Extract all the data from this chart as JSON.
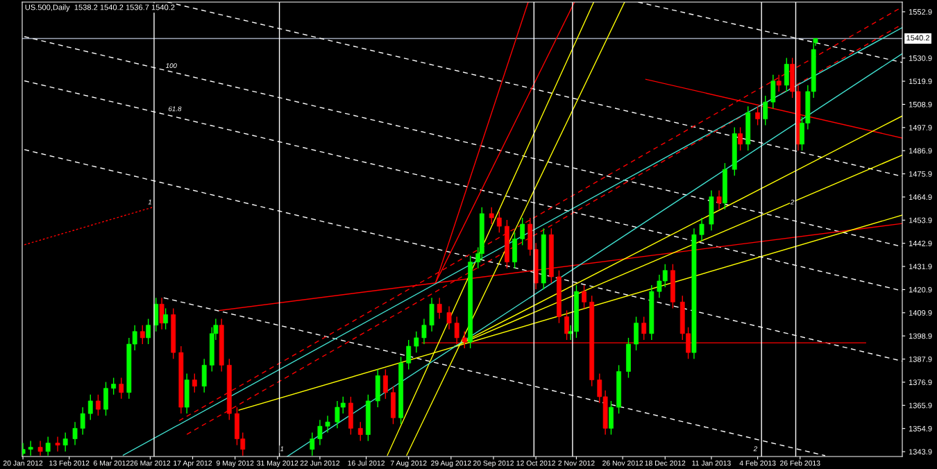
{
  "chart_data": {
    "type": "candlestick",
    "title": "US.500,Daily  1538.2 1540.2 1536.7 1540.2",
    "x": [
      "2012-01-20",
      "2012-01-24",
      "2012-01-29",
      "2012-02-02",
      "2012-02-07",
      "2012-02-11",
      "2012-02-16",
      "2012-02-20",
      "2012-02-24",
      "2012-02-28",
      "2012-03-03",
      "2012-03-07",
      "2012-03-11",
      "2012-03-15",
      "2012-03-18",
      "2012-03-22",
      "2012-03-25",
      "2012-03-29",
      "2012-04-01",
      "2012-04-03",
      "2012-04-07",
      "2012-04-11",
      "2012-04-14",
      "2012-04-18",
      "2012-04-23",
      "2012-04-27",
      "2012-04-29",
      "2012-05-02",
      "2012-05-06",
      "2012-05-10",
      "2012-05-13",
      "2012-06-18",
      "2012-06-22",
      "2012-06-26",
      "2012-07-01",
      "2012-07-04",
      "2012-07-08",
      "2012-07-13",
      "2012-07-17",
      "2012-07-22",
      "2012-07-26",
      "2012-07-30",
      "2012-08-03",
      "2012-08-07",
      "2012-08-11",
      "2012-08-15",
      "2012-08-19",
      "2012-08-23",
      "2012-08-28",
      "2012-09-01",
      "2012-09-05",
      "2012-09-08",
      "2012-09-12",
      "2012-09-14",
      "2012-09-19",
      "2012-09-23",
      "2012-09-27",
      "2012-10-01",
      "2012-10-05",
      "2012-10-09",
      "2012-10-12",
      "2012-10-16",
      "2012-10-20",
      "2012-10-24",
      "2012-10-28",
      "2012-10-30",
      "2012-11-02",
      "2012-11-06",
      "2012-11-10",
      "2012-11-14",
      "2012-11-17",
      "2012-11-20",
      "2012-11-24",
      "2012-11-29",
      "2012-12-03",
      "2012-12-07",
      "2012-12-11",
      "2012-12-15",
      "2012-12-18",
      "2012-12-22",
      "2012-12-27",
      "2012-12-30",
      "2013-01-02",
      "2013-01-06",
      "2013-01-11",
      "2013-01-15",
      "2013-01-18",
      "2013-01-23",
      "2013-01-26",
      "2013-01-30",
      "2013-02-04",
      "2013-02-08",
      "2013-02-12",
      "2013-02-15",
      "2013-02-19",
      "2013-02-22",
      "2013-02-25",
      "2013-02-27",
      "2013-03-02",
      "2013-03-05",
      "2013-03-06"
    ],
    "ohlc": [
      [
        1343,
        1348,
        1342,
        1345
      ],
      [
        1345,
        1349,
        1342,
        1346
      ],
      [
        1346,
        1349,
        1342,
        1344
      ],
      [
        1344,
        1351,
        1342,
        1348
      ],
      [
        1348,
        1351,
        1344,
        1347
      ],
      [
        1347,
        1353,
        1344,
        1350
      ],
      [
        1350,
        1358,
        1347,
        1355
      ],
      [
        1355,
        1365,
        1352,
        1362
      ],
      [
        1362,
        1371,
        1359,
        1368
      ],
      [
        1368,
        1371,
        1361,
        1364
      ],
      [
        1364,
        1377,
        1361,
        1374
      ],
      [
        1374,
        1379,
        1371,
        1376
      ],
      [
        1376,
        1379,
        1369,
        1372
      ],
      [
        1372,
        1398,
        1369,
        1395
      ],
      [
        1395,
        1404,
        1392,
        1401
      ],
      [
        1401,
        1404,
        1395,
        1398
      ],
      [
        1398,
        1407,
        1395,
        1404
      ],
      [
        1404,
        1417,
        1401,
        1414
      ],
      [
        1414,
        1417,
        1402,
        1405
      ],
      [
        1405,
        1412,
        1402,
        1409
      ],
      [
        1409,
        1412,
        1388,
        1391
      ],
      [
        1391,
        1394,
        1362,
        1365
      ],
      [
        1365,
        1381,
        1362,
        1378
      ],
      [
        1378,
        1381,
        1372,
        1375
      ],
      [
        1375,
        1388,
        1372,
        1385
      ],
      [
        1385,
        1403,
        1382,
        1400
      ],
      [
        1400,
        1407,
        1397,
        1404
      ],
      [
        1404,
        1407,
        1382,
        1385
      ],
      [
        1385,
        1388,
        1359,
        1362
      ],
      [
        1362,
        1365,
        1347,
        1350
      ],
      [
        1350,
        1353,
        1342,
        1345
      ],
      [
        1345,
        1353,
        1342,
        1350
      ],
      [
        1350,
        1359,
        1347,
        1356
      ],
      [
        1356,
        1361,
        1353,
        1358
      ],
      [
        1358,
        1368,
        1355,
        1365
      ],
      [
        1365,
        1370,
        1362,
        1367
      ],
      [
        1367,
        1370,
        1352,
        1355
      ],
      [
        1355,
        1358,
        1349,
        1352
      ],
      [
        1352,
        1371,
        1349,
        1368
      ],
      [
        1368,
        1383,
        1365,
        1380
      ],
      [
        1380,
        1383,
        1369,
        1372
      ],
      [
        1372,
        1375,
        1357,
        1360
      ],
      [
        1360,
        1389,
        1357,
        1386
      ],
      [
        1386,
        1397,
        1383,
        1394
      ],
      [
        1394,
        1401,
        1391,
        1398
      ],
      [
        1398,
        1407,
        1395,
        1404
      ],
      [
        1404,
        1417,
        1401,
        1414
      ],
      [
        1414,
        1417,
        1407,
        1410
      ],
      [
        1410,
        1413,
        1402,
        1405
      ],
      [
        1405,
        1408,
        1395,
        1398
      ],
      [
        1398,
        1401,
        1393,
        1396
      ],
      [
        1396,
        1437,
        1393,
        1434
      ],
      [
        1434,
        1441,
        1431,
        1438
      ],
      [
        1438,
        1460,
        1435,
        1457
      ],
      [
        1457,
        1460,
        1452,
        1455
      ],
      [
        1455,
        1458,
        1448,
        1451
      ],
      [
        1451,
        1454,
        1431,
        1434
      ],
      [
        1434,
        1448,
        1431,
        1445
      ],
      [
        1445,
        1455,
        1442,
        1452
      ],
      [
        1452,
        1455,
        1437,
        1440
      ],
      [
        1440,
        1443,
        1421,
        1424
      ],
      [
        1424,
        1450,
        1421,
        1447
      ],
      [
        1447,
        1450,
        1424,
        1427
      ],
      [
        1427,
        1430,
        1405,
        1408
      ],
      [
        1408,
        1411,
        1397,
        1400
      ],
      [
        1400,
        1404,
        1397,
        1401
      ],
      [
        1401,
        1423,
        1398,
        1420
      ],
      [
        1420,
        1423,
        1412,
        1415
      ],
      [
        1415,
        1418,
        1375,
        1378
      ],
      [
        1378,
        1381,
        1367,
        1370
      ],
      [
        1370,
        1373,
        1352,
        1355
      ],
      [
        1355,
        1368,
        1352,
        1365
      ],
      [
        1365,
        1385,
        1362,
        1382
      ],
      [
        1382,
        1398,
        1379,
        1395
      ],
      [
        1395,
        1408,
        1392,
        1405
      ],
      [
        1405,
        1408,
        1397,
        1400
      ],
      [
        1400,
        1423,
        1397,
        1420
      ],
      [
        1420,
        1428,
        1417,
        1425
      ],
      [
        1425,
        1433,
        1422,
        1430
      ],
      [
        1430,
        1433,
        1412,
        1415
      ],
      [
        1415,
        1418,
        1397,
        1400
      ],
      [
        1400,
        1403,
        1388,
        1391
      ],
      [
        1391,
        1450,
        1388,
        1447
      ],
      [
        1447,
        1455,
        1444,
        1452
      ],
      [
        1452,
        1468,
        1449,
        1465
      ],
      [
        1465,
        1468,
        1459,
        1462
      ],
      [
        1462,
        1481,
        1459,
        1478
      ],
      [
        1478,
        1498,
        1475,
        1495
      ],
      [
        1495,
        1498,
        1487,
        1490
      ],
      [
        1490,
        1508,
        1487,
        1505
      ],
      [
        1505,
        1508,
        1499,
        1502
      ],
      [
        1502,
        1513,
        1499,
        1510
      ],
      [
        1510,
        1523,
        1507,
        1520
      ],
      [
        1520,
        1523,
        1515,
        1518
      ],
      [
        1518,
        1531,
        1515,
        1528
      ],
      [
        1528,
        1531,
        1512,
        1515
      ],
      [
        1515,
        1518,
        1487,
        1490
      ],
      [
        1490,
        1503,
        1487,
        1500
      ],
      [
        1500,
        1518,
        1497,
        1515
      ],
      [
        1515,
        1538,
        1512,
        1535
      ],
      [
        1538.2,
        1540.2,
        1536.7,
        1540.2
      ]
    ],
    "series": [
      {
        "type": "line",
        "color": "#ffffff",
        "line_style": "dashed",
        "x": [
          "2012-12-04",
          "2013-04-20"
        ],
        "values": [
          1557.5,
          1528.8
        ]
      },
      {
        "type": "line",
        "color": "#ffffff",
        "line_style": "dashed",
        "x": [
          "2012-04-04",
          "2013-04-20"
        ],
        "values": [
          1557.5,
          1474.7
        ]
      },
      {
        "type": "line",
        "color": "#ffffff",
        "line_style": "dashed",
        "x": [
          "2012-01-20T18:00",
          "2013-04-20"
        ],
        "values": [
          1541.1,
          1441.3
        ]
      },
      {
        "type": "line",
        "color": "#ffffff",
        "line_style": "dashed",
        "x": [
          "2012-01-20T18:00",
          "2013-04-20"
        ],
        "values": [
          1520.1,
          1420.3
        ]
      },
      {
        "type": "line",
        "color": "#ffffff",
        "line_style": "dashed",
        "x": [
          "2012-01-20T18:00",
          "2013-04-20"
        ],
        "values": [
          1487.4,
          1386.9
        ]
      },
      {
        "type": "line",
        "color": "#ffffff",
        "line_style": "dashed",
        "x": [
          "2012-04-02",
          "2013-03-11"
        ],
        "values": [
          1417.0,
          1342.0
        ]
      },
      {
        "type": "line",
        "color": "#ff0000",
        "line_style": "solid",
        "x": [
          "2012-05-01",
          "2013-04-20"
        ],
        "values": [
          1411.0,
          1452.3
        ]
      },
      {
        "type": "line",
        "color": "#ff0000",
        "line_style": "solid",
        "x": [
          "2012-08-21",
          "2012-10-08"
        ],
        "values": [
          1424.2,
          1557.5
        ]
      },
      {
        "type": "line",
        "color": "#ff0000",
        "line_style": "solid",
        "x": [
          "2012-08-21",
          "2012-11-01"
        ],
        "values": [
          1424.2,
          1557.5
        ]
      },
      {
        "type": "line",
        "color": "#ff0000",
        "line_style": "dashed",
        "x": [
          "2012-04-10",
          "2013-04-20"
        ],
        "values": [
          1358.6,
          1555.2
        ]
      },
      {
        "type": "line",
        "color": "#ff0000",
        "line_style": "dashed",
        "x": [
          "2012-04-14",
          "2013-04-20"
        ],
        "values": [
          1352.1,
          1547.0
        ]
      },
      {
        "type": "line",
        "color": "#ff0000",
        "line_style": "solid",
        "x": [
          "2012-08-14",
          "2013-04-01"
        ],
        "values": [
          1395.6,
          1395.6
        ]
      },
      {
        "type": "line",
        "color": "#ff0000",
        "line_style": "solid",
        "x": [
          "2012-12-08",
          "2013-04-20"
        ],
        "values": [
          1520.8,
          1492.9
        ]
      },
      {
        "type": "line",
        "color": "#ff0000",
        "line_style": "dotted",
        "x": [
          "2012-01-20T18:00",
          "2012-03-28"
        ],
        "values": [
          1442.2,
          1460.2
        ]
      },
      {
        "type": "line",
        "color": "#ffff00",
        "line_style": "solid",
        "x": [
          "2012-05-11",
          "2013-04-20"
        ],
        "values": [
          1363.6,
          1456.3
        ]
      },
      {
        "type": "line",
        "color": "#ffff00",
        "line_style": "solid",
        "x": [
          "2012-08-31",
          "2013-04-20"
        ],
        "values": [
          1394.0,
          1484.8
        ]
      },
      {
        "type": "line",
        "color": "#ffff00",
        "line_style": "solid",
        "x": [
          "2012-08-31",
          "2013-04-20"
        ],
        "values": [
          1394.0,
          1503.4
        ]
      },
      {
        "type": "line",
        "color": "#ffff00",
        "line_style": "solid",
        "x": [
          "2012-07-27",
          "2012-11-11"
        ],
        "values": [
          1342.2,
          1557.5
        ]
      },
      {
        "type": "line",
        "color": "#ffff00",
        "line_style": "solid",
        "x": [
          "2012-08-06",
          "2012-11-27"
        ],
        "values": [
          1342.2,
          1557.5
        ]
      },
      {
        "type": "line",
        "color": "#40e0d0",
        "line_style": "solid",
        "x": [
          "2012-03-12",
          "2013-04-20"
        ],
        "values": [
          1342.2,
          1545.4
        ]
      },
      {
        "type": "line",
        "color": "#40e0d0",
        "line_style": "solid",
        "x": [
          "2012-06-05",
          "2013-04-20"
        ],
        "values": [
          1341.6,
          1533.0
        ]
      }
    ],
    "ref_lines": [
      {
        "axis": "x",
        "value": "2012-03-28",
        "color": "#ffffff"
      },
      {
        "axis": "x",
        "value": "2012-06-01",
        "color": "#ffffff"
      },
      {
        "axis": "x",
        "value": "2012-10-11",
        "color": "#ffffff"
      },
      {
        "axis": "x",
        "value": "2012-10-31",
        "color": "#ffffff"
      },
      {
        "axis": "x",
        "value": "2013-02-06",
        "color": "#ffffff"
      },
      {
        "axis": "x",
        "value": "2013-02-23T18:00",
        "color": "#ffffff"
      },
      {
        "axis": "y",
        "value": 1540.2,
        "label": "1540.2",
        "color": "#a0a8b8"
      }
    ],
    "annotations": [
      "100",
      "61.8",
      "1",
      "1",
      "2",
      "2"
    ],
    "xlim": [
      "2012-01-19T15:00",
      "2013-04-20"
    ],
    "ylim": [
      1341.6,
      1557.5
    ],
    "xticks": [
      {
        "value": "2012-01-20",
        "label": "20 Jan 2012"
      },
      {
        "value": "2012-02-13",
        "label": "13 Feb 2012"
      },
      {
        "value": "2012-03-06",
        "label": "6 Mar 2012"
      },
      {
        "value": "2012-03-26",
        "label": "26 Mar 2012"
      },
      {
        "value": "2012-04-17",
        "label": "17 Apr 2012"
      },
      {
        "value": "2012-05-09",
        "label": "9 May 2012"
      },
      {
        "value": "2012-05-31",
        "label": "31 May 2012"
      },
      {
        "value": "2012-06-22",
        "label": "22 Jun 2012"
      },
      {
        "value": "2012-07-16",
        "label": "16 Jul 2012"
      },
      {
        "value": "2012-08-07",
        "label": "7 Aug 2012"
      },
      {
        "value": "2012-08-29",
        "label": "29 Aug 2012"
      },
      {
        "value": "2012-09-20",
        "label": "20 Sep 2012"
      },
      {
        "value": "2012-10-12",
        "label": "12 Oct 2012"
      },
      {
        "value": "2012-11-02",
        "label": "2 Nov 2012"
      },
      {
        "value": "2012-11-26",
        "label": "26 Nov 2012"
      },
      {
        "value": "2012-12-18",
        "label": "18 Dec 2012"
      },
      {
        "value": "2013-01-11",
        "label": "11 Jan 2013"
      },
      {
        "value": "2013-02-04",
        "label": "4 Feb 2013"
      },
      {
        "value": "2013-02-26",
        "label": "26 Feb 2013"
      }
    ],
    "yticks": [
      1343.9,
      1354.9,
      1365.9,
      1376.9,
      1387.9,
      1398.9,
      1409.9,
      1420.9,
      1431.9,
      1442.9,
      1453.9,
      1464.9,
      1475.9,
      1486.9,
      1497.9,
      1508.9,
      1519.9,
      1530.9,
      1552.9
    ],
    "grid": false,
    "legend": false
  }
}
